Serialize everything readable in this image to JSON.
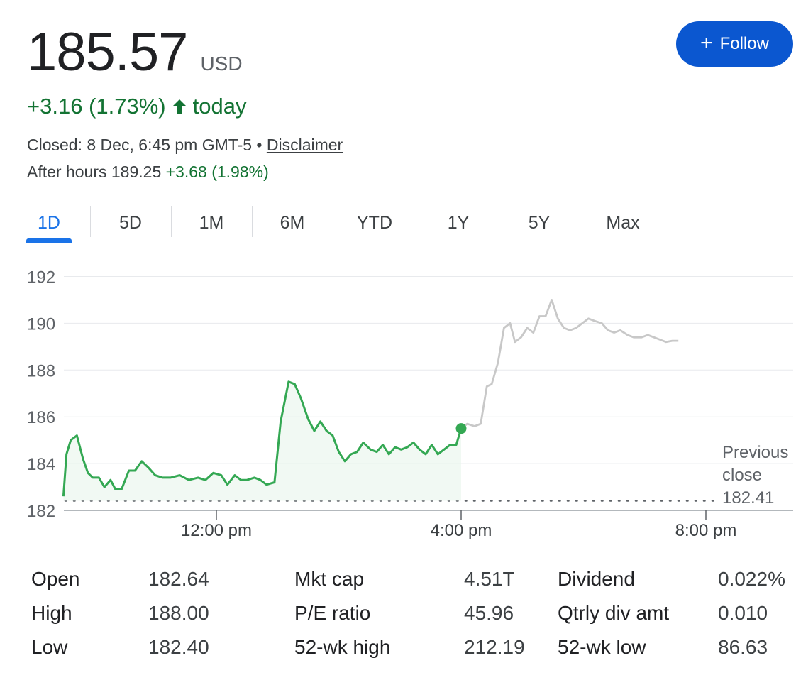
{
  "quote": {
    "price": "185.57",
    "currency": "USD",
    "change": "+3.16 (1.73%)",
    "change_suffix": "today",
    "closed_text": "Closed: 8 Dec, 6:45 pm GMT-5 • ",
    "disclaimer": "Disclaimer",
    "after_hours_label": "After hours 189.25 ",
    "after_hours_change": "+3.68 (1.98%)"
  },
  "follow_button": {
    "label": "Follow"
  },
  "tabs": [
    "1D",
    "5D",
    "1M",
    "6M",
    "YTD",
    "1Y",
    "5Y",
    "Max"
  ],
  "active_tab": "1D",
  "chart_data": {
    "type": "line",
    "y_ticks": [
      "192",
      "190",
      "188",
      "186",
      "184",
      "182"
    ],
    "ylim": [
      182,
      192
    ],
    "x_tick_labels": [
      "12:00 pm",
      "4:00 pm",
      "8:00 pm"
    ],
    "x_tick_hours": [
      12,
      16,
      20
    ],
    "x_range_hours": [
      9.5,
      21.4
    ],
    "previous_close_label": [
      "Previous",
      "close",
      "182.41"
    ],
    "previous_close": 182.41,
    "colors": {
      "regular": "#34a853",
      "after_hours": "#c8c8c8",
      "grid": "#e8eaed",
      "axis": "#80868b",
      "fill": "#e6f4ea"
    },
    "series": [
      {
        "session": "regular",
        "x": [
          9.5,
          9.55,
          9.62,
          9.72,
          9.82,
          9.9,
          9.98,
          10.08,
          10.17,
          10.27,
          10.35,
          10.45,
          10.57,
          10.67,
          10.78,
          10.9,
          11.0,
          11.12,
          11.25,
          11.4,
          11.55,
          11.7,
          11.82,
          11.95,
          12.08,
          12.18,
          12.3,
          12.4,
          12.5,
          12.62,
          12.72,
          12.82,
          12.95,
          13.05,
          13.18,
          13.28,
          13.38,
          13.5,
          13.6,
          13.7,
          13.8,
          13.9,
          14.0,
          14.1,
          14.2,
          14.3,
          14.4,
          14.52,
          14.62,
          14.72,
          14.82,
          14.92,
          15.02,
          15.12,
          15.22,
          15.32,
          15.42,
          15.52,
          15.62,
          15.72,
          15.82,
          15.92,
          16.0
        ],
        "y": [
          182.6,
          184.4,
          185.0,
          185.2,
          184.2,
          183.6,
          183.4,
          183.4,
          183.0,
          183.3,
          182.9,
          182.9,
          183.7,
          183.7,
          184.1,
          183.8,
          183.5,
          183.4,
          183.4,
          183.5,
          183.3,
          183.4,
          183.3,
          183.6,
          183.5,
          183.1,
          183.5,
          183.3,
          183.3,
          183.4,
          183.3,
          183.1,
          183.2,
          185.8,
          187.5,
          187.4,
          186.8,
          185.9,
          185.4,
          185.8,
          185.4,
          185.2,
          184.5,
          184.1,
          184.4,
          184.5,
          184.9,
          184.6,
          184.5,
          184.8,
          184.4,
          184.7,
          184.6,
          184.7,
          184.9,
          184.6,
          184.4,
          184.8,
          184.4,
          184.6,
          184.8,
          184.8,
          185.5
        ]
      },
      {
        "session": "after_hours",
        "x": [
          16.0,
          16.1,
          16.22,
          16.32,
          16.42,
          16.5,
          16.6,
          16.7,
          16.8,
          16.88,
          16.98,
          17.08,
          17.18,
          17.28,
          17.38,
          17.48,
          17.58,
          17.68,
          17.78,
          17.88,
          17.98,
          18.08,
          18.18,
          18.3,
          18.4,
          18.5,
          18.6,
          18.72,
          18.82,
          18.95,
          19.05,
          19.15,
          19.25,
          19.35,
          19.45,
          19.55
        ],
        "y": [
          185.5,
          185.7,
          185.6,
          185.7,
          187.3,
          187.4,
          188.3,
          189.8,
          190.0,
          189.2,
          189.4,
          189.8,
          189.6,
          190.3,
          190.3,
          191.0,
          190.2,
          189.8,
          189.7,
          189.8,
          190.0,
          190.2,
          190.1,
          190.0,
          189.7,
          189.6,
          189.7,
          189.5,
          189.4,
          189.4,
          189.5,
          189.4,
          189.3,
          189.2,
          189.25,
          189.25
        ]
      }
    ]
  },
  "stats": [
    {
      "label": "Open",
      "value": "182.64"
    },
    {
      "label": "High",
      "value": "188.00"
    },
    {
      "label": "Low",
      "value": "182.40"
    },
    {
      "label": "Mkt cap",
      "value": "4.51T"
    },
    {
      "label": "P/E ratio",
      "value": "45.96"
    },
    {
      "label": "52-wk high",
      "value": "212.19"
    },
    {
      "label": "Dividend",
      "value": "0.022%"
    },
    {
      "label": "Qtrly div amt",
      "value": "0.010"
    },
    {
      "label": "52-wk low",
      "value": "86.63"
    }
  ]
}
